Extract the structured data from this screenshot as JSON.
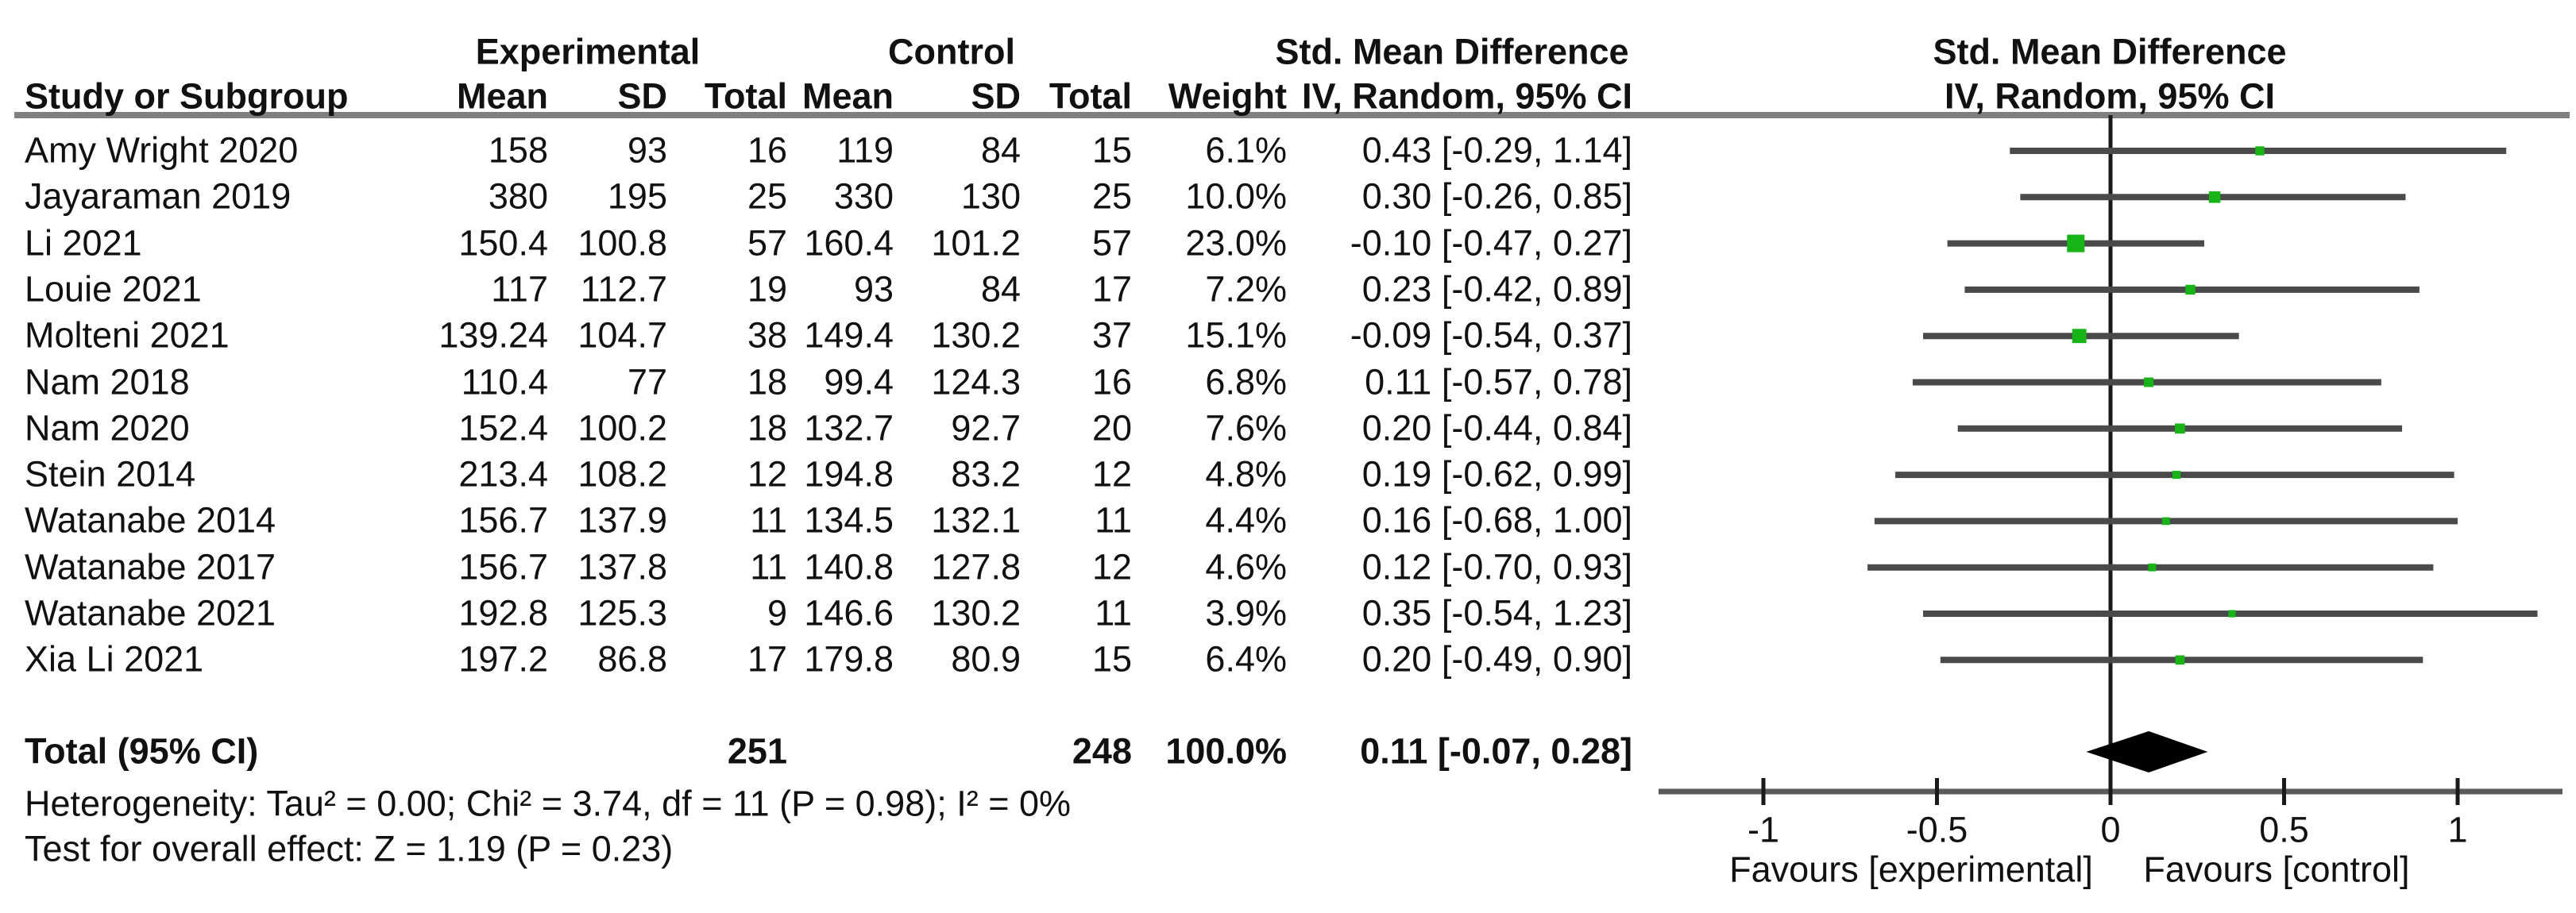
{
  "chart_data": {
    "type": "scatter",
    "subtype": "forest-plot",
    "title": "",
    "effect_measure": "Std. Mean Difference",
    "method": "IV, Random, 95% CI",
    "groups": {
      "experimental": "Experimental",
      "control": "Control"
    },
    "col_study": "Study or Subgroup",
    "col_mean": "Mean",
    "col_sd": "SD",
    "col_total": "Total",
    "col_weight": "Weight",
    "studies": [
      {
        "name": "Amy Wright 2020",
        "exp_mean": "158",
        "exp_sd": "93",
        "exp_total": "16",
        "ctrl_mean": "119",
        "ctrl_sd": "84",
        "ctrl_total": "15",
        "weight": "6.1%",
        "ci_text": "0.43 [-0.29, 1.14]",
        "est": 0.43,
        "lo": -0.29,
        "hi": 1.14,
        "weight_value": 6.1
      },
      {
        "name": "Jayaraman 2019",
        "exp_mean": "380",
        "exp_sd": "195",
        "exp_total": "25",
        "ctrl_mean": "330",
        "ctrl_sd": "130",
        "ctrl_total": "25",
        "weight": "10.0%",
        "ci_text": "0.30 [-0.26, 0.85]",
        "est": 0.3,
        "lo": -0.26,
        "hi": 0.85,
        "weight_value": 10.0
      },
      {
        "name": "Li 2021",
        "exp_mean": "150.4",
        "exp_sd": "100.8",
        "exp_total": "57",
        "ctrl_mean": "160.4",
        "ctrl_sd": "101.2",
        "ctrl_total": "57",
        "weight": "23.0%",
        "ci_text": "-0.10 [-0.47, 0.27]",
        "est": -0.1,
        "lo": -0.47,
        "hi": 0.27,
        "weight_value": 23.0
      },
      {
        "name": "Louie 2021",
        "exp_mean": "117",
        "exp_sd": "112.7",
        "exp_total": "19",
        "ctrl_mean": "93",
        "ctrl_sd": "84",
        "ctrl_total": "17",
        "weight": "7.2%",
        "ci_text": "0.23 [-0.42, 0.89]",
        "est": 0.23,
        "lo": -0.42,
        "hi": 0.89,
        "weight_value": 7.2
      },
      {
        "name": "Molteni 2021",
        "exp_mean": "139.24",
        "exp_sd": "104.7",
        "exp_total": "38",
        "ctrl_mean": "149.4",
        "ctrl_sd": "130.2",
        "ctrl_total": "37",
        "weight": "15.1%",
        "ci_text": "-0.09 [-0.54, 0.37]",
        "est": -0.09,
        "lo": -0.54,
        "hi": 0.37,
        "weight_value": 15.1
      },
      {
        "name": "Nam 2018",
        "exp_mean": "110.4",
        "exp_sd": "77",
        "exp_total": "18",
        "ctrl_mean": "99.4",
        "ctrl_sd": "124.3",
        "ctrl_total": "16",
        "weight": "6.8%",
        "ci_text": "0.11 [-0.57, 0.78]",
        "est": 0.11,
        "lo": -0.57,
        "hi": 0.78,
        "weight_value": 6.8
      },
      {
        "name": "Nam 2020",
        "exp_mean": "152.4",
        "exp_sd": "100.2",
        "exp_total": "18",
        "ctrl_mean": "132.7",
        "ctrl_sd": "92.7",
        "ctrl_total": "20",
        "weight": "7.6%",
        "ci_text": "0.20 [-0.44, 0.84]",
        "est": 0.2,
        "lo": -0.44,
        "hi": 0.84,
        "weight_value": 7.6
      },
      {
        "name": "Stein 2014",
        "exp_mean": "213.4",
        "exp_sd": "108.2",
        "exp_total": "12",
        "ctrl_mean": "194.8",
        "ctrl_sd": "83.2",
        "ctrl_total": "12",
        "weight": "4.8%",
        "ci_text": "0.19 [-0.62, 0.99]",
        "est": 0.19,
        "lo": -0.62,
        "hi": 0.99,
        "weight_value": 4.8
      },
      {
        "name": "Watanabe 2014",
        "exp_mean": "156.7",
        "exp_sd": "137.9",
        "exp_total": "11",
        "ctrl_mean": "134.5",
        "ctrl_sd": "132.1",
        "ctrl_total": "11",
        "weight": "4.4%",
        "ci_text": "0.16 [-0.68, 1.00]",
        "est": 0.16,
        "lo": -0.68,
        "hi": 1.0,
        "weight_value": 4.4
      },
      {
        "name": "Watanabe 2017",
        "exp_mean": "156.7",
        "exp_sd": "137.8",
        "exp_total": "11",
        "ctrl_mean": "140.8",
        "ctrl_sd": "127.8",
        "ctrl_total": "12",
        "weight": "4.6%",
        "ci_text": "0.12 [-0.70, 0.93]",
        "est": 0.12,
        "lo": -0.7,
        "hi": 0.93,
        "weight_value": 4.6
      },
      {
        "name": "Watanabe 2021",
        "exp_mean": "192.8",
        "exp_sd": "125.3",
        "exp_total": "9",
        "ctrl_mean": "146.6",
        "ctrl_sd": "130.2",
        "ctrl_total": "11",
        "weight": "3.9%",
        "ci_text": "0.35 [-0.54, 1.23]",
        "est": 0.35,
        "lo": -0.54,
        "hi": 1.23,
        "weight_value": 3.9
      },
      {
        "name": "Xia Li 2021",
        "exp_mean": "197.2",
        "exp_sd": "86.8",
        "exp_total": "17",
        "ctrl_mean": "179.8",
        "ctrl_sd": "80.9",
        "ctrl_total": "15",
        "weight": "6.4%",
        "ci_text": "0.20 [-0.49, 0.90]",
        "est": 0.2,
        "lo": -0.49,
        "hi": 0.9,
        "weight_value": 6.4
      }
    ],
    "total": {
      "label": "Total (95% CI)",
      "exp_total": "251",
      "ctrl_total": "248",
      "weight": "100.0%",
      "ci_text": "0.11 [-0.07, 0.28]",
      "est": 0.11,
      "lo": -0.07,
      "hi": 0.28
    },
    "heterogeneity": "Heterogeneity: Tau² = 0.00; Chi² = 3.74, df = 11 (P = 0.98); I² = 0%",
    "overall_effect": "Test for overall effect: Z = 1.19 (P = 0.23)",
    "x_axis": {
      "ticks": [
        -1,
        -0.5,
        0,
        0.5,
        1
      ],
      "tick_labels": [
        "-1",
        "-0.5",
        "0",
        "0.5",
        "1"
      ],
      "range": [
        -1.3,
        1.3
      ],
      "grid": false
    },
    "footer_labels": {
      "left": "Favours [experimental]",
      "right": "Favours [control]"
    },
    "colors": {
      "marker": "#17b317",
      "ci_line": "#4a4a4a",
      "diamond": "#000000",
      "axis": "#5a5a5a",
      "zero_line": "#1a1a1a",
      "header_rule": "#7f7f7f",
      "text": "#111111"
    }
  }
}
